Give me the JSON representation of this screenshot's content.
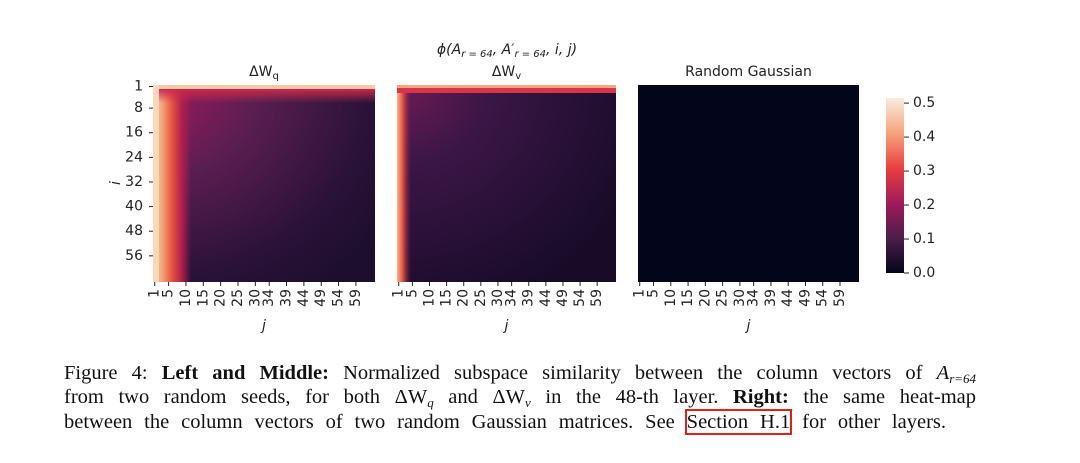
{
  "figure": {
    "suptitle": [
      "ϕ(A",
      "r = 64",
      ", A′",
      "r = 64",
      ", i, j)"
    ],
    "panels": [
      {
        "title": [
          "ΔW",
          "q"
        ]
      },
      {
        "title": [
          "ΔW",
          "v"
        ]
      },
      {
        "title": [
          "Random Gaussian"
        ]
      }
    ],
    "y_label": "i",
    "x_label": "j",
    "ylim": [
      0.5,
      64.5
    ],
    "yticks": [
      1,
      8,
      16,
      24,
      32,
      40,
      48,
      56
    ],
    "xlim": [
      0.5,
      64.5
    ],
    "xticks": [
      1,
      5,
      10,
      15,
      20,
      25,
      30,
      34,
      39,
      44,
      49,
      54,
      59
    ],
    "colorbar_lim": [
      0,
      0.515
    ],
    "colorbar_ticks": [
      {
        "value": 0,
        "label": "0.0"
      },
      0.1,
      0.2,
      0.3,
      0.4,
      0.5
    ]
  },
  "caption": {
    "segments": [
      "Figure 4:",
      "Left and Middle:",
      "Normalized subspace similarity between the column vectors of",
      "A",
      "r=64",
      "from two random seeds, for both",
      "ΔW",
      "q",
      "and",
      "ΔW",
      "v",
      "in the 48-th layer.",
      "Right:",
      "the same heat-map",
      "between the column vectors of two random Gaussian matrices. See",
      "Section H.1",
      "for other layers."
    ]
  }
}
